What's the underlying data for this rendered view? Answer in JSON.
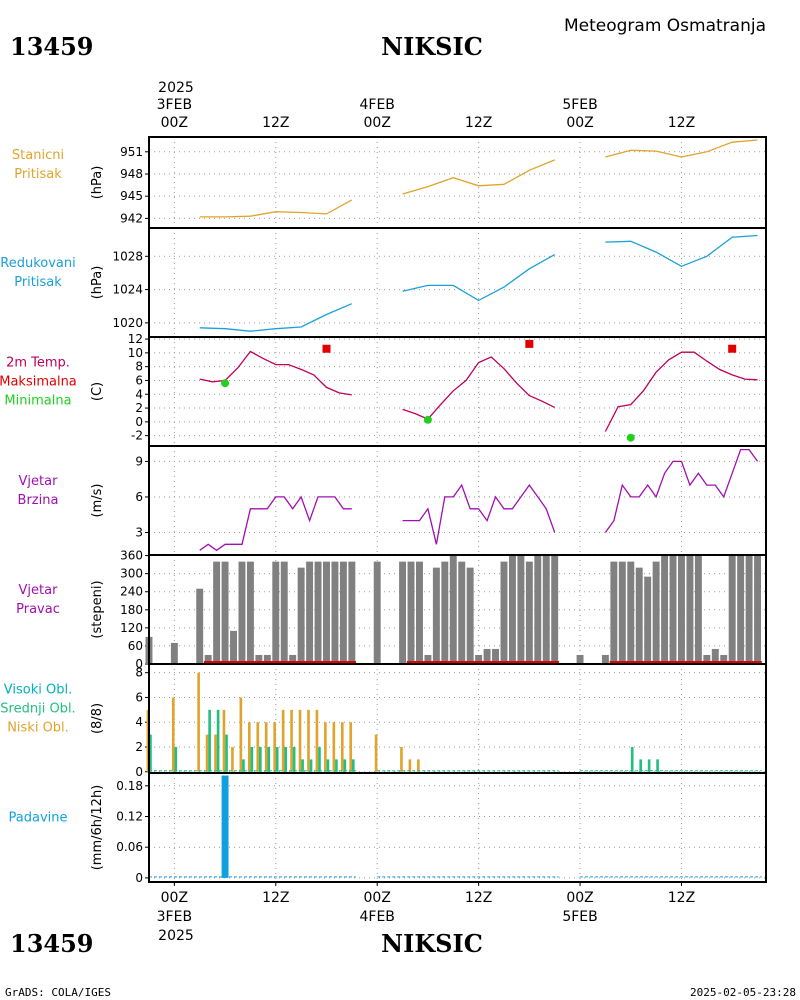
{
  "header": {
    "station_code": "13459",
    "station_name": "NIKSIC",
    "title": "Meteogram Osmatranja"
  },
  "footer": {
    "left": "GrADS: COLA/IGES",
    "right": "2025-02-05-23:28"
  },
  "time_axis": {
    "top_year": "2025",
    "bottom_year": "2025",
    "labels": [
      {
        "t": 0,
        "time": "00Z",
        "date": "3FEB"
      },
      {
        "t": 12,
        "time": "12Z",
        "date": ""
      },
      {
        "t": 24,
        "time": "00Z",
        "date": "4FEB"
      },
      {
        "t": 36,
        "time": "12Z",
        "date": ""
      },
      {
        "t": 48,
        "time": "00Z",
        "date": "5FEB"
      },
      {
        "t": 60,
        "time": "12Z",
        "date": ""
      }
    ],
    "range": [
      -3,
      70
    ]
  },
  "colors": {
    "pressure": "#e0a42c",
    "reduced": "#1ba0d8",
    "tmax": "#e00000",
    "tmin": "#20d020",
    "temp_line": "#c0005a",
    "wind": "#a010b0",
    "direction_bar": "#808080",
    "direction_calm": "#e00000",
    "cloud_high": "#00b0c0",
    "cloud_mid": "#20c080",
    "cloud_low": "#e0a42c",
    "precip": "#10a0e0"
  },
  "chart_data": [
    {
      "type": "line",
      "panel": "station_pressure",
      "labels": [
        "Stanicni",
        "Pritisak"
      ],
      "label_colors": [
        "#e0a42c",
        "#e0a42c"
      ],
      "ylabel": "(hPa)",
      "ylim": [
        940.7,
        953.0
      ],
      "yticks": [
        942,
        945,
        948,
        951
      ],
      "series": [
        {
          "x": [
            3,
            6,
            9,
            12,
            15,
            18,
            21
          ],
          "values": [
            942.2,
            942.2,
            942.3,
            942.9,
            942.8,
            942.6,
            944.5
          ]
        },
        {
          "x": [
            27,
            30,
            33,
            36,
            39,
            42,
            45
          ],
          "values": [
            945.3,
            946.3,
            947.5,
            946.4,
            946.6,
            948.5,
            949.9
          ]
        },
        {
          "x": [
            51,
            54,
            57,
            60,
            63,
            66,
            69
          ],
          "values": [
            950.3,
            951.2,
            951.1,
            950.3,
            951.0,
            952.3,
            952.6
          ]
        }
      ]
    },
    {
      "type": "line",
      "panel": "reduced_pressure",
      "labels": [
        "Redukovani",
        "Pritisak"
      ],
      "label_colors": [
        "#1ba0d8",
        "#1ba0d8"
      ],
      "ylabel": "(hPa)",
      "ylim": [
        1018.3,
        1031.4
      ],
      "yticks": [
        1020,
        1024,
        1028
      ],
      "series": [
        {
          "x": [
            3,
            6,
            9,
            12,
            15,
            18,
            21
          ],
          "values": [
            1019.4,
            1019.3,
            1019.0,
            1019.3,
            1019.5,
            1021.0,
            1022.3
          ]
        },
        {
          "x": [
            27,
            30,
            33,
            36,
            39,
            42,
            45
          ],
          "values": [
            1023.8,
            1024.5,
            1024.5,
            1022.7,
            1024.3,
            1026.5,
            1028.2
          ]
        },
        {
          "x": [
            51,
            54,
            57,
            60,
            63,
            66,
            69
          ],
          "values": [
            1029.7,
            1029.8,
            1028.5,
            1026.8,
            1028.0,
            1030.3,
            1030.5
          ]
        }
      ]
    },
    {
      "type": "line",
      "panel": "temperature",
      "labels": [
        "2m Temp.",
        "Maksimalna",
        "Minimalna"
      ],
      "label_colors": [
        "#c0005a",
        "#e00000",
        "#20d020"
      ],
      "ylabel": "(C)",
      "ylim": [
        -3.5,
        12.3
      ],
      "yticks": [
        -2,
        0,
        2,
        4,
        6,
        8,
        10,
        12
      ],
      "series": [
        {
          "x": [
            3,
            4.5,
            6,
            7.5,
            9,
            10.5,
            12,
            13.5,
            15,
            16.5,
            18,
            19.5,
            21
          ],
          "values": [
            6.2,
            5.8,
            6.0,
            7.8,
            10.2,
            9.2,
            8.3,
            8.3,
            7.6,
            6.8,
            5.0,
            4.2,
            3.9
          ]
        },
        {
          "x": [
            27,
            28.5,
            30,
            31.5,
            33,
            34.5,
            36,
            37.5,
            39,
            40.5,
            42,
            43.5,
            45
          ],
          "values": [
            1.8,
            1.2,
            0.4,
            2.5,
            4.5,
            6.0,
            8.6,
            9.4,
            7.7,
            5.6,
            3.8,
            3.0,
            2.1
          ]
        },
        {
          "x": [
            51,
            52.5,
            54,
            55.5,
            57,
            58.5,
            60,
            61.5,
            63,
            64.5,
            66,
            67.5,
            69
          ],
          "values": [
            -1.4,
            2.2,
            2.5,
            4.5,
            7.2,
            9.0,
            10.1,
            10.1,
            8.8,
            7.6,
            6.8,
            6.2,
            6.1
          ]
        }
      ],
      "tmax": [
        {
          "x": 18,
          "value": 10.6
        },
        {
          "x": 42,
          "value": 11.3
        },
        {
          "x": 66,
          "value": 10.6
        }
      ],
      "tmin": [
        {
          "x": 6,
          "value": 5.6
        },
        {
          "x": 30,
          "value": 0.3
        },
        {
          "x": 54,
          "value": -2.3
        }
      ]
    },
    {
      "type": "line",
      "panel": "wind_speed",
      "labels": [
        "Vjetar",
        "Brzina"
      ],
      "label_colors": [
        "#a010b0",
        "#a010b0"
      ],
      "ylabel": "(m/s)",
      "ylim": [
        1.1,
        10.3
      ],
      "yticks": [
        3,
        6,
        9
      ],
      "series": [
        {
          "x": [
            3,
            4,
            5,
            6,
            7,
            8,
            9,
            10,
            11,
            12,
            13,
            14,
            15,
            16,
            17,
            18,
            19,
            20,
            21
          ],
          "values": [
            1.5,
            2.0,
            1.5,
            2.0,
            2.0,
            2.0,
            5.0,
            5.0,
            5.0,
            6.0,
            6.0,
            5.0,
            6.0,
            4.0,
            6.0,
            6.0,
            6.0,
            5.0,
            5.0
          ]
        },
        {
          "x": [
            27,
            28,
            29,
            30,
            31,
            32,
            33,
            34,
            35,
            36,
            37,
            38,
            39,
            40,
            41,
            42,
            43,
            44,
            45
          ],
          "values": [
            4.0,
            4.0,
            4.0,
            5.0,
            2.0,
            6.0,
            6.0,
            7.0,
            5.0,
            5.0,
            4.0,
            6.0,
            5.0,
            5.0,
            6.0,
            7.0,
            6.0,
            5.0,
            3.0
          ]
        },
        {
          "x": [
            51,
            52,
            53,
            54,
            55,
            56,
            57,
            58,
            59,
            60,
            61,
            62,
            63,
            64,
            65,
            66,
            67,
            68,
            69
          ],
          "values": [
            3.0,
            4.0,
            7.0,
            6.0,
            6.0,
            7.0,
            6.0,
            8.0,
            9.0,
            9.0,
            7.0,
            8.0,
            7.0,
            7.0,
            6.0,
            8.0,
            10.0,
            10.0,
            9.0
          ]
        }
      ]
    },
    {
      "type": "bar",
      "panel": "wind_direction",
      "labels": [
        "Vjetar",
        "Pravac"
      ],
      "label_colors": [
        "#a010b0",
        "#a010b0"
      ],
      "ylabel": "(stepeni)",
      "ylim": [
        0,
        362
      ],
      "yticks": [
        0,
        60,
        120,
        180,
        240,
        300,
        360
      ],
      "x": [
        -3,
        0,
        3,
        4,
        5,
        6,
        7,
        8,
        9,
        10,
        11,
        12,
        13,
        14,
        15,
        16,
        17,
        18,
        19,
        20,
        21,
        24,
        27,
        28,
        29,
        30,
        31,
        32,
        33,
        34,
        35,
        36,
        37,
        38,
        39,
        40,
        41,
        42,
        43,
        44,
        45,
        48,
        51,
        52,
        53,
        54,
        55,
        56,
        57,
        58,
        59,
        60,
        61,
        62,
        63,
        64,
        65,
        66,
        67,
        68,
        69
      ],
      "values": [
        90,
        70,
        250,
        30,
        340,
        340,
        110,
        340,
        340,
        30,
        30,
        340,
        340,
        30,
        320,
        340,
        340,
        340,
        340,
        340,
        340,
        340,
        340,
        340,
        340,
        30,
        320,
        340,
        360,
        340,
        320,
        30,
        50,
        50,
        340,
        360,
        360,
        340,
        360,
        360,
        360,
        30,
        30,
        340,
        340,
        340,
        320,
        290,
        340,
        360,
        360,
        360,
        360,
        360,
        30,
        50,
        30,
        360,
        360,
        360,
        360
      ],
      "calm_line": [
        {
          "x0": 3.5,
          "x1": 21.5
        },
        {
          "x0": 27.5,
          "x1": 45.5
        },
        {
          "x0": 51.5,
          "x1": 69.5
        }
      ]
    },
    {
      "type": "bar",
      "panel": "cloud_cover",
      "labels": [
        "Visoki Obl.",
        "Srednji Obl.",
        "Niski Obl."
      ],
      "label_colors": [
        "#00b0c0",
        "#20c080",
        "#e0a42c"
      ],
      "ylabel": "(8/8)",
      "ylim": [
        -0.1,
        8.7
      ],
      "yticks": [
        0,
        2,
        4,
        6,
        8
      ],
      "x": [
        -3,
        0,
        3,
        4,
        5,
        6,
        7,
        8,
        9,
        10,
        11,
        12,
        13,
        14,
        15,
        16,
        17,
        18,
        19,
        20,
        21,
        24,
        27,
        28,
        29,
        54,
        55,
        56,
        57
      ],
      "low": [
        5,
        6,
        8,
        3,
        3,
        5,
        2,
        6,
        4,
        4,
        4,
        4,
        5,
        5,
        5,
        5,
        5,
        4,
        4,
        4,
        4,
        3,
        2,
        1,
        1,
        0,
        0,
        0,
        0
      ],
      "mid": [
        3,
        2,
        0,
        5,
        5,
        3,
        0,
        1,
        2,
        2,
        2,
        2,
        2,
        2,
        1,
        1,
        2,
        1,
        1,
        1,
        1,
        0,
        0,
        0,
        0,
        2,
        1,
        1,
        1
      ]
    },
    {
      "type": "bar",
      "panel": "precipitation",
      "labels": [
        "Padavine"
      ],
      "label_colors": [
        "#10a0e0"
      ],
      "ylabel": "(mm/6h/12h)",
      "ylim": [
        -0.008,
        0.205
      ],
      "yticks": [
        0,
        0.06,
        0.12,
        0.18
      ],
      "ytick_labels": [
        "0",
        "0.06",
        "0.12",
        "0.18"
      ],
      "x": [
        6
      ],
      "values": [
        0.2
      ]
    }
  ]
}
